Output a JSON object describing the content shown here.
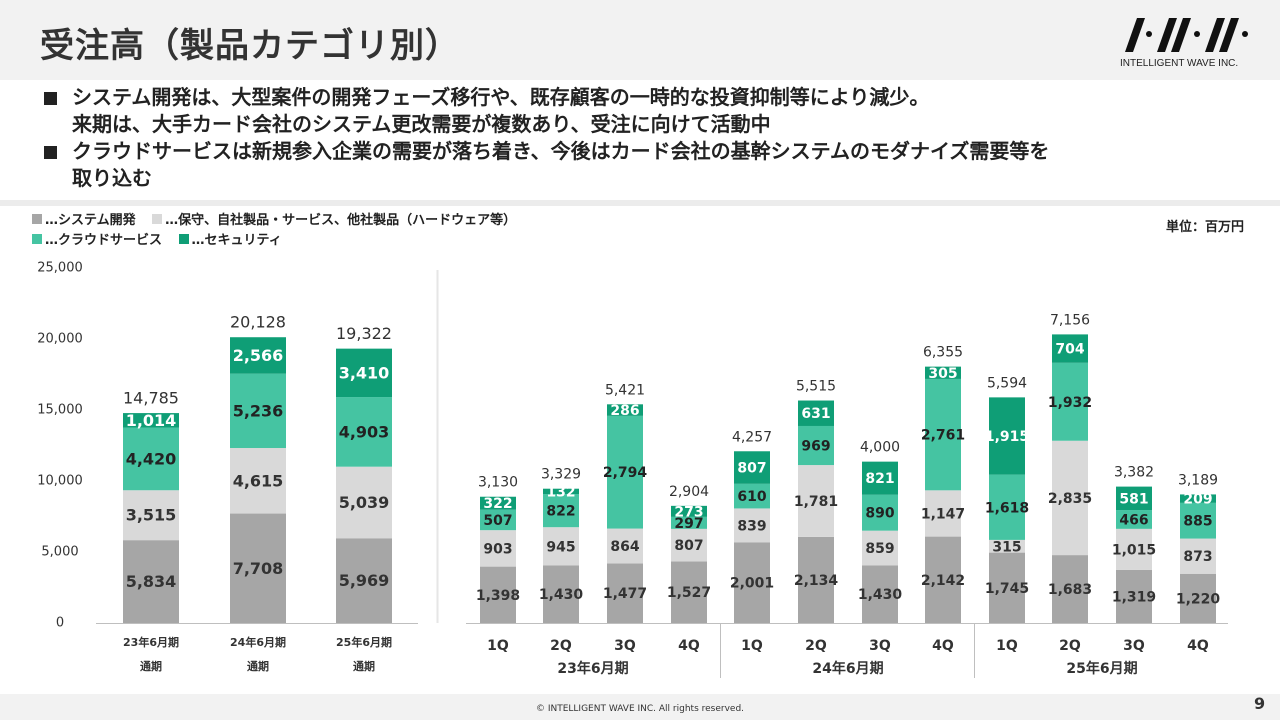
{
  "header": {
    "title": "受注高（製品カテゴリ別）",
    "logo_text": "INTELLIGENT WAVE INC."
  },
  "bullets": [
    {
      "line1": "システム開発は、大型案件の開発フェーズ移行や、既存顧客の一時的な投資抑制等により減少。",
      "line2": "来期は、大手カード会社のシステム更改需要が複数あり、受注に向けて活動中"
    },
    {
      "line1": "クラウドサービスは新規参入企業の需要が落ち着き、今後はカード会社の基幹システムのモダナイズ需要等を",
      "line2": "取り込む"
    }
  ],
  "unit": "単位：百万円",
  "footer": {
    "copyright": "© INTELLIGENT WAVE INC. All rights reserved.",
    "page": "9"
  },
  "colors": {
    "system": "#a6a6a6",
    "maintenance": "#d9d9d9",
    "cloud": "#45c4a2",
    "security": "#0f9e76"
  },
  "chart_data": [
    {
      "type": "bar",
      "stacked": true,
      "title": "",
      "ylim": [
        0,
        25000
      ],
      "yticks": [
        "0",
        "5,000",
        "10,000",
        "15,000",
        "20,000",
        "25,000"
      ],
      "categories": [
        "23年6月期",
        "24年6月期",
        "25年6月期"
      ],
      "sublabels": [
        "通期",
        "通期",
        "通期"
      ],
      "totals": [
        "14,785",
        "20,128",
        "19,322"
      ],
      "series": [
        {
          "name": "…システム開発",
          "values": [
            5834,
            7708,
            5969
          ]
        },
        {
          "name": "…保守、自社製品・サービス、他社製品（ハードウェア等）",
          "values": [
            3515,
            4615,
            5039
          ]
        },
        {
          "name": "…クラウドサービス",
          "values": [
            4420,
            5236,
            4903
          ]
        },
        {
          "name": "…セキュリティ",
          "values": [
            1014,
            2566,
            3410
          ]
        }
      ]
    },
    {
      "type": "bar",
      "stacked": true,
      "title": "",
      "ylim": [
        0,
        25000
      ],
      "categories": [
        "1Q",
        "2Q",
        "3Q",
        "4Q",
        "1Q",
        "2Q",
        "3Q",
        "4Q",
        "1Q",
        "2Q",
        "3Q",
        "4Q"
      ],
      "groups": [
        "23年6月期",
        "24年6月期",
        "25年6月期"
      ],
      "totals": [
        "3,130",
        "3,329",
        "5,421",
        "2,904",
        "4,257",
        "5,515",
        "4,000",
        "6,355",
        "5,594",
        "7,156",
        "3,382",
        "3,189"
      ],
      "series": [
        {
          "name": "…システム開発",
          "values": [
            1398,
            1430,
            1477,
            1527,
            2001,
            2134,
            1430,
            2142,
            1745,
            1683,
            1319,
            1220
          ]
        },
        {
          "name": "…保守、自社製品・サービス、他社製品（ハードウェア等）",
          "values": [
            903,
            945,
            864,
            807,
            839,
            1781,
            859,
            1147,
            315,
            2835,
            1015,
            873
          ]
        },
        {
          "name": "…クラウドサービス",
          "values": [
            507,
            822,
            2794,
            297,
            610,
            969,
            890,
            2761,
            1618,
            1932,
            466,
            885
          ]
        },
        {
          "name": "…セキュリティ",
          "values": [
            322,
            132,
            286,
            273,
            807,
            631,
            821,
            305,
            1915,
            704,
            581,
            209
          ]
        }
      ]
    }
  ]
}
